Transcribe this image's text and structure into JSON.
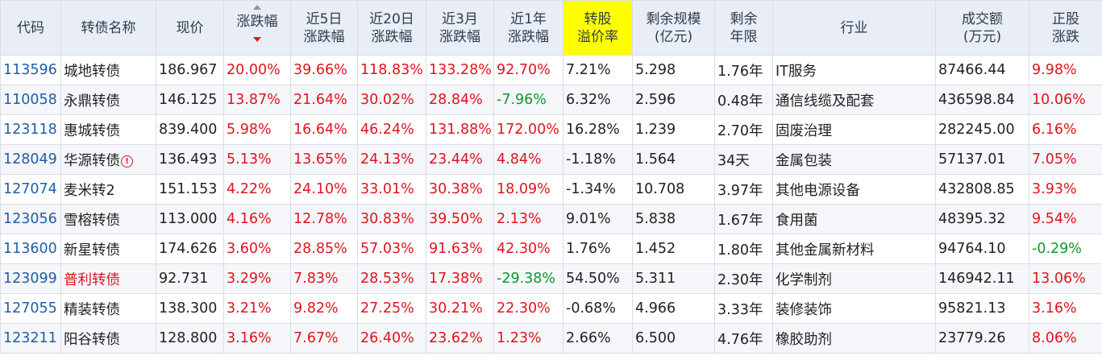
{
  "table": {
    "headers": [
      {
        "lines": [
          "代码"
        ]
      },
      {
        "lines": [
          "转债名称"
        ]
      },
      {
        "lines": [
          "现价"
        ]
      },
      {
        "lines": [
          "涨跌幅"
        ]
      },
      {
        "lines": [
          "近5日",
          "涨跌幅"
        ]
      },
      {
        "lines": [
          "近20日",
          "涨跌幅"
        ]
      },
      {
        "lines": [
          "近3月",
          "涨跌幅"
        ]
      },
      {
        "lines": [
          "近1年",
          "涨跌幅"
        ]
      },
      {
        "lines": [
          "转股",
          "溢价率"
        ]
      },
      {
        "lines": [
          "剩余规模",
          "(亿元)"
        ]
      },
      {
        "lines": [
          "剩余",
          "年限"
        ]
      },
      {
        "lines": [
          "行业"
        ]
      },
      {
        "lines": [
          "成交额",
          "(万元)"
        ]
      },
      {
        "lines": [
          "正股",
          "涨跌"
        ]
      }
    ],
    "highlight_color": "#ffff00",
    "up_color": "#e0141e",
    "down_color": "#0b9a2c",
    "rows": [
      {
        "code": "113596",
        "name": "城地转债",
        "price": "186.967",
        "chg": "20.00%",
        "chg5d": "39.66%",
        "chg20d": "118.83%",
        "chg3m": "133.28%",
        "chg1y": "92.70%",
        "premium": "7.21%",
        "scale": "5.298",
        "years": "1.76年",
        "industry": "IT服务",
        "amount": "87466.44",
        "stock_chg": "9.98%"
      },
      {
        "code": "110058",
        "name": "永鼎转债",
        "price": "146.125",
        "chg": "13.87%",
        "chg5d": "21.64%",
        "chg20d": "30.02%",
        "chg3m": "28.84%",
        "chg1y": "-7.96%",
        "premium": "6.32%",
        "scale": "2.596",
        "years": "0.48年",
        "industry": "通信线缆及配套",
        "amount": "436598.84",
        "stock_chg": "10.06%"
      },
      {
        "code": "123118",
        "name": "惠城转债",
        "price": "839.400",
        "chg": "5.98%",
        "chg5d": "16.64%",
        "chg20d": "46.24%",
        "chg3m": "131.88%",
        "chg1y": "172.00%",
        "premium": "16.28%",
        "scale": "1.239",
        "years": "2.70年",
        "industry": "固废治理",
        "amount": "282245.00",
        "stock_chg": "6.16%"
      },
      {
        "code": "128049",
        "name": "华源转债",
        "warn": "!",
        "price": "136.493",
        "chg": "5.13%",
        "chg5d": "13.65%",
        "chg20d": "24.13%",
        "chg3m": "23.44%",
        "chg1y": "4.84%",
        "premium": "-1.18%",
        "scale": "1.564",
        "years": "34天",
        "industry": "金属包装",
        "amount": "57137.01",
        "stock_chg": "7.05%"
      },
      {
        "code": "127074",
        "name": "麦米转2",
        "price": "151.153",
        "chg": "4.22%",
        "chg5d": "24.10%",
        "chg20d": "33.01%",
        "chg3m": "30.38%",
        "chg1y": "18.09%",
        "premium": "-1.34%",
        "scale": "10.708",
        "years": "3.97年",
        "industry": "其他电源设备",
        "amount": "432808.85",
        "stock_chg": "3.93%"
      },
      {
        "code": "123056",
        "name": "雪榕转债",
        "price": "113.000",
        "chg": "4.16%",
        "chg5d": "12.78%",
        "chg20d": "30.83%",
        "chg3m": "39.50%",
        "chg1y": "2.13%",
        "premium": "9.01%",
        "scale": "5.838",
        "years": "1.67年",
        "industry": "食用菌",
        "amount": "48395.32",
        "stock_chg": "9.54%"
      },
      {
        "code": "113600",
        "name": "新星转债",
        "price": "174.626",
        "chg": "3.60%",
        "chg5d": "28.85%",
        "chg20d": "57.03%",
        "chg3m": "91.63%",
        "chg1y": "42.30%",
        "premium": "1.76%",
        "scale": "1.452",
        "years": "1.80年",
        "industry": "其他金属新材料",
        "amount": "94764.10",
        "stock_chg": "-0.29%"
      },
      {
        "code": "123099",
        "name": "普利转债",
        "name_red": true,
        "price": "92.731",
        "chg": "3.29%",
        "chg5d": "7.83%",
        "chg20d": "28.53%",
        "chg3m": "17.38%",
        "chg1y": "-29.38%",
        "premium": "54.50%",
        "scale": "5.311",
        "years": "2.30年",
        "industry": "化学制剂",
        "amount": "146942.11",
        "stock_chg": "13.06%"
      },
      {
        "code": "127055",
        "name": "精装转债",
        "price": "138.300",
        "chg": "3.21%",
        "chg5d": "9.82%",
        "chg20d": "27.25%",
        "chg3m": "30.21%",
        "chg1y": "22.30%",
        "premium": "-0.68%",
        "scale": "4.966",
        "years": "3.33年",
        "industry": "装修装饰",
        "amount": "95821.13",
        "stock_chg": "3.16%"
      },
      {
        "code": "123211",
        "name": "阳谷转债",
        "price": "128.800",
        "chg": "3.16%",
        "chg5d": "7.67%",
        "chg20d": "26.40%",
        "chg3m": "23.62%",
        "chg1y": "1.23%",
        "premium": "2.66%",
        "scale": "6.500",
        "years": "4.76年",
        "industry": "橡胶助剂",
        "amount": "23779.26",
        "stock_chg": "8.06%"
      }
    ]
  }
}
